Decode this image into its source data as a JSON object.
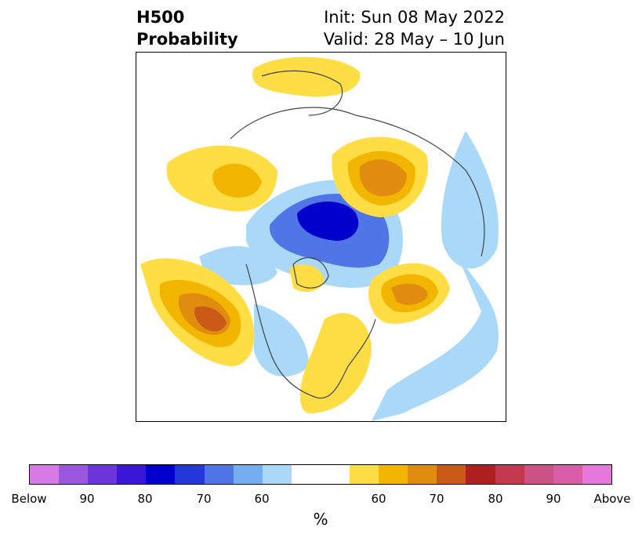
{
  "title": {
    "left_line1": "H500",
    "left_line2": "Probability",
    "right_line1": "Init: Sun 08 May 2022",
    "right_line2": "Valid: 28 May – 10 Jun"
  },
  "colorbar": {
    "colors": [
      "#d67ae6",
      "#9b57e0",
      "#6a35d9",
      "#3a16d6",
      "#0000cc",
      "#2438d9",
      "#4f75e6",
      "#75adf0",
      "#aad8f8",
      "#ffffff",
      "#ffffff",
      "#ffdd44",
      "#f2b500",
      "#e08c0e",
      "#c95a18",
      "#b02020",
      "#c2384f",
      "#cc5285",
      "#d95ea8",
      "#e678dc"
    ],
    "tick_labels": [
      "Below",
      "90",
      "80",
      "70",
      "60",
      "60",
      "70",
      "80",
      "90",
      "Above"
    ],
    "unit": "%"
  }
}
